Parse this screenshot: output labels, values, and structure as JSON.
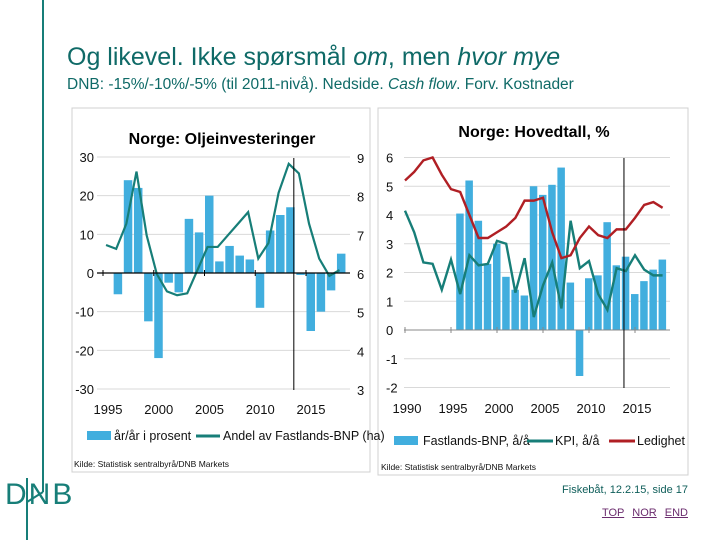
{
  "slide": {
    "title_parts": [
      "Og likevel. Ikke spørsmål ",
      "om",
      ", men ",
      "hvor mye"
    ],
    "subtitle_parts": [
      "DNB: -15%/-10%/-5% (til 2011-nivå). Nedside. ",
      "Cash flow",
      ". Forv. Kostnader"
    ],
    "logo_text": "DNB",
    "footer": "Fiskebåt, 12.2.15, side 17",
    "nav_links": [
      "TOP",
      "NOR",
      "END"
    ],
    "brand_color": "#0f6a67"
  },
  "chart_data": [
    {
      "type": "bar+line",
      "title": "Norge: Oljeinvesteringer",
      "source": "Kilde: Statistisk sentralbyrå/DNB Markets",
      "x_ticks": [
        "1995",
        "2000",
        "2005",
        "2010",
        "2015"
      ],
      "y_left_ticks": [
        "30",
        "20",
        "10",
        "0",
        "-10",
        "-20",
        "-30"
      ],
      "y_left_lim": [
        -30,
        30
      ],
      "y_right_ticks": [
        "9",
        "8",
        "7",
        "6",
        "5",
        "4",
        "3"
      ],
      "y_right_lim": [
        3,
        9
      ],
      "forecast_line_x": 2013.8,
      "series": [
        {
          "name": "år/år i prosent",
          "type": "bar",
          "axis": "left",
          "color": "#41aede",
          "x": [
            1996,
            1997,
            1998,
            1999,
            2000,
            2001,
            2002,
            2003,
            2004,
            2005,
            2006,
            2007,
            2008,
            2009,
            2010,
            2011,
            2012,
            2013,
            2014,
            2015,
            2016,
            2017,
            2018
          ],
          "values": [
            -5.5,
            24,
            22,
            -12.5,
            -22,
            -2.5,
            -5,
            14,
            10.5,
            20,
            3,
            7,
            4.5,
            3.5,
            -9,
            11,
            15,
            17,
            -0.5,
            -15,
            -10,
            -4.5,
            5
          ]
        },
        {
          "name": "Andel av Fastlands-BNP (ha)",
          "type": "line",
          "axis": "right",
          "color": "#177e78",
          "x": [
            1995,
            1996,
            1997,
            1998,
            1999,
            2000,
            2001,
            2002,
            2003,
            2004,
            2005,
            2006,
            2007,
            2008,
            2009,
            2010,
            2011,
            2012,
            2013,
            2014,
            2015,
            2016,
            2017,
            2018
          ],
          "values": [
            6.75,
            6.65,
            7.3,
            8.65,
            7.0,
            6.0,
            5.55,
            5.45,
            5.5,
            6.1,
            6.7,
            6.7,
            7.0,
            7.3,
            7.6,
            6.4,
            6.8,
            8.1,
            8.85,
            8.6,
            7.3,
            6.4,
            5.95,
            6.1
          ]
        }
      ]
    },
    {
      "type": "bar+line",
      "title": "Norge: Hovedtall, %",
      "source": "Kilde: Statistisk sentralbyrå/DNB Markets",
      "x_ticks": [
        "1990",
        "1995",
        "2000",
        "2005",
        "2010",
        "2015"
      ],
      "y_ticks": [
        "6",
        "5",
        "4",
        "3",
        "2",
        "1",
        "0",
        "-1",
        "-2"
      ],
      "y_lim": [
        -2,
        6
      ],
      "forecast_line_x": 2013.8,
      "series": [
        {
          "name": "Fastlands-BNP, å/å",
          "type": "bar",
          "color": "#41aede",
          "x": [
            1996,
            1997,
            1998,
            1999,
            2000,
            2001,
            2002,
            2003,
            2004,
            2005,
            2006,
            2007,
            2008,
            2009,
            2010,
            2011,
            2012,
            2013,
            2014,
            2015,
            2016,
            2017,
            2018
          ],
          "values": [
            4.05,
            5.2,
            3.8,
            2.3,
            3.0,
            1.85,
            1.4,
            1.2,
            5.0,
            4.7,
            5.05,
            5.65,
            1.65,
            -1.6,
            1.8,
            1.9,
            3.75,
            2.25,
            2.55,
            1.25,
            1.7,
            2.1,
            2.45
          ]
        },
        {
          "name": "KPI, å/å",
          "type": "line",
          "color": "#177e78",
          "x": [
            1990,
            1991,
            1992,
            1993,
            1994,
            1995,
            1996,
            1997,
            1998,
            1999,
            2000,
            2001,
            2002,
            2003,
            2004,
            2005,
            2006,
            2007,
            2008,
            2009,
            2010,
            2011,
            2012,
            2013,
            2014,
            2015,
            2016,
            2017,
            2018
          ],
          "values": [
            4.15,
            3.4,
            2.35,
            2.3,
            1.4,
            2.45,
            1.25,
            2.6,
            2.25,
            2.3,
            3.1,
            3.0,
            1.3,
            2.5,
            0.45,
            1.55,
            2.35,
            0.75,
            3.8,
            2.15,
            2.4,
            1.25,
            0.7,
            2.15,
            2.05,
            2.6,
            2.1,
            1.9,
            1.9
          ]
        },
        {
          "name": "Ledighet",
          "type": "line",
          "color": "#b01f24",
          "x": [
            1990,
            1991,
            1992,
            1993,
            1994,
            1995,
            1996,
            1997,
            1998,
            1999,
            2000,
            2001,
            2002,
            2003,
            2004,
            2005,
            2006,
            2007,
            2008,
            2009,
            2010,
            2011,
            2012,
            2013,
            2014,
            2015,
            2016,
            2017,
            2018
          ],
          "values": [
            5.2,
            5.5,
            5.9,
            6.0,
            5.4,
            4.9,
            4.8,
            4.0,
            3.2,
            3.2,
            3.4,
            3.6,
            3.9,
            4.5,
            4.5,
            4.6,
            3.4,
            2.5,
            2.6,
            3.2,
            3.6,
            3.3,
            3.2,
            3.5,
            3.5,
            3.9,
            4.35,
            4.45,
            4.25
          ]
        }
      ]
    }
  ]
}
